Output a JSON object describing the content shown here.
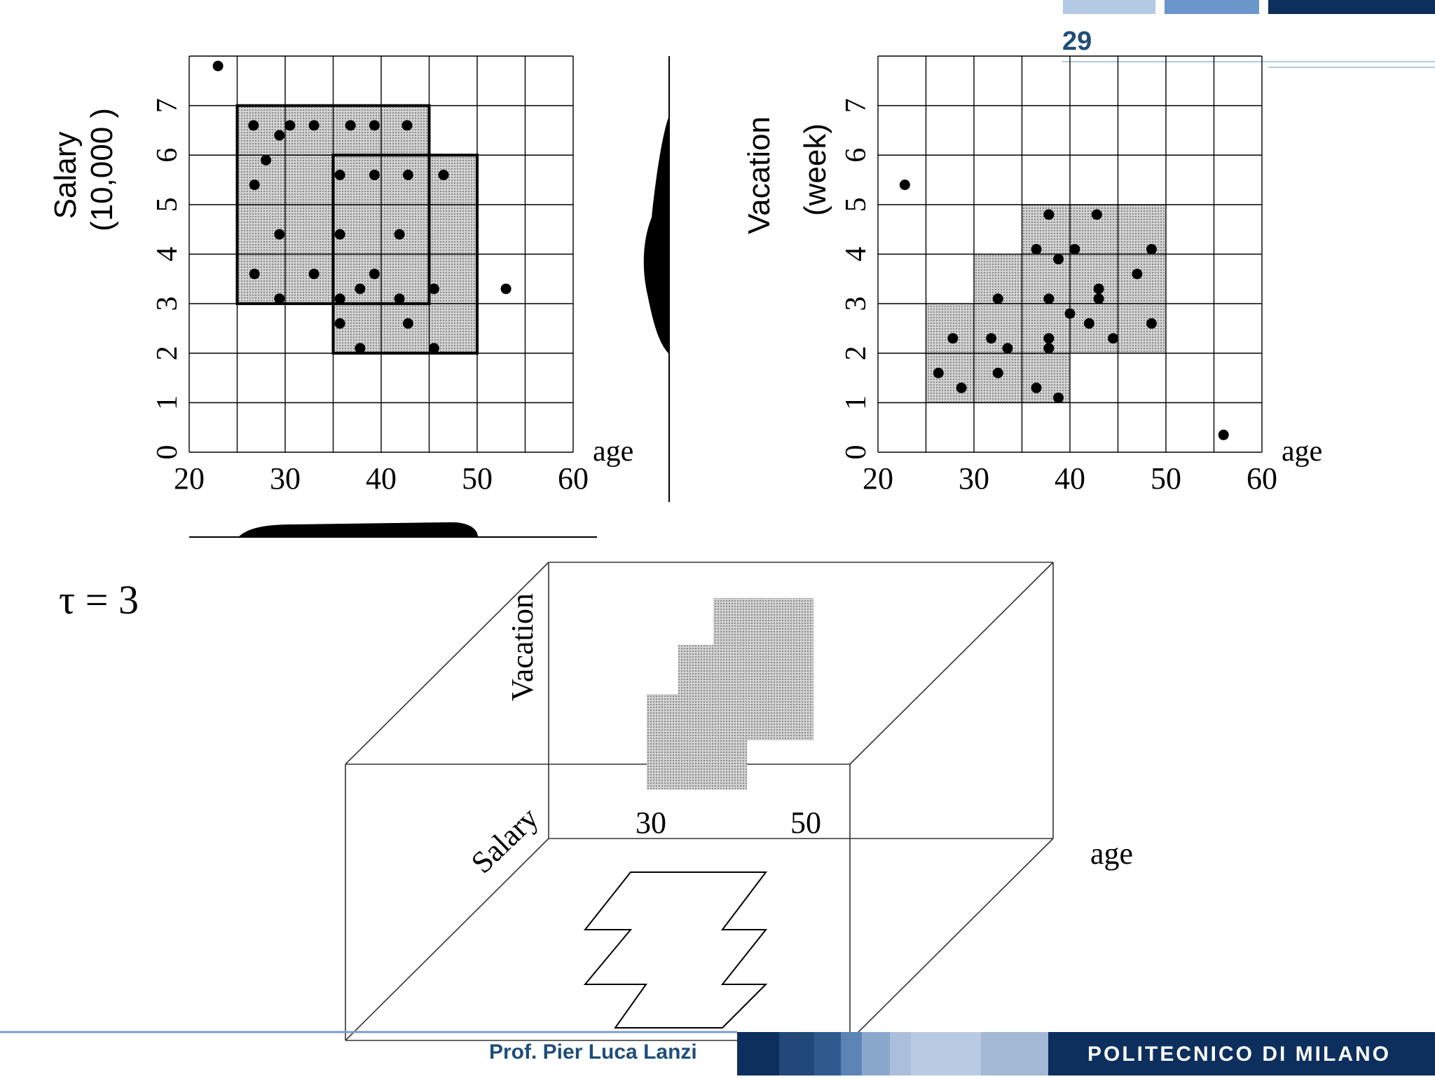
{
  "slide_number": "29",
  "footer": {
    "author": "Prof. Pier Luca Lanzi",
    "institution": "POLITECNICO DI MILANO"
  },
  "tau_label": "τ = 3",
  "colors": {
    "header_light": "#b3c9e4",
    "header_mid": "#6a96cb",
    "header_dark": "#0d2f5e",
    "footer_dark": "#0d2f5e",
    "shade": "#c4c4c4"
  },
  "chart_data": [
    {
      "type": "scatter",
      "ylabel": "Salary (10,000 )",
      "xlabel": "age",
      "x_ticks": [
        "20",
        "30",
        "40",
        "50",
        "60"
      ],
      "y_ticks": [
        "0",
        "1",
        "2",
        "3",
        "4",
        "5",
        "6",
        "7"
      ],
      "xlim": [
        20,
        60
      ],
      "ylim": [
        0,
        8
      ],
      "dense_regions": [
        {
          "x": [
            25,
            45
          ],
          "y": [
            3,
            7
          ]
        },
        {
          "x": [
            35,
            50
          ],
          "y": [
            2,
            6
          ]
        }
      ],
      "points": [
        [
          23,
          7.8
        ],
        [
          26.7,
          6.6
        ],
        [
          30.5,
          6.6
        ],
        [
          33,
          6.6
        ],
        [
          36.8,
          6.6
        ],
        [
          39.3,
          6.6
        ],
        [
          42.7,
          6.6
        ],
        [
          29.4,
          6.4
        ],
        [
          28,
          5.9
        ],
        [
          26.8,
          5.4
        ],
        [
          35.7,
          5.6
        ],
        [
          39.3,
          5.6
        ],
        [
          42.8,
          5.6
        ],
        [
          46.5,
          5.6
        ],
        [
          29.4,
          4.4
        ],
        [
          35.7,
          4.4
        ],
        [
          41.9,
          4.4
        ],
        [
          26.8,
          3.6
        ],
        [
          33,
          3.6
        ],
        [
          39.3,
          3.6
        ],
        [
          37.8,
          3.3
        ],
        [
          45.5,
          3.3
        ],
        [
          29.4,
          3.1
        ],
        [
          35.7,
          3.1
        ],
        [
          41.9,
          3.1
        ],
        [
          35.7,
          2.6
        ],
        [
          42.8,
          2.6
        ],
        [
          37.8,
          2.1
        ],
        [
          45.5,
          2.1
        ],
        [
          53,
          3.3
        ]
      ]
    },
    {
      "type": "scatter",
      "ylabel": "Vacation (week)",
      "xlabel": "age",
      "x_ticks": [
        "20",
        "30",
        "40",
        "50",
        "60"
      ],
      "y_ticks": [
        "0",
        "1",
        "2",
        "3",
        "4",
        "5",
        "6",
        "7"
      ],
      "xlim": [
        20,
        60
      ],
      "ylim": [
        0,
        8
      ],
      "dense_regions": [
        {
          "x": [
            25,
            35
          ],
          "y": [
            1,
            3
          ]
        },
        {
          "x": [
            30,
            40
          ],
          "y": [
            1,
            4
          ]
        },
        {
          "x": [
            35,
            50
          ],
          "y": [
            2,
            5
          ]
        }
      ],
      "points": [
        [
          22.8,
          5.4
        ],
        [
          37.8,
          4.8
        ],
        [
          42.8,
          4.8
        ],
        [
          36.5,
          4.1
        ],
        [
          40.5,
          4.1
        ],
        [
          48.5,
          4.1
        ],
        [
          38.8,
          3.9
        ],
        [
          47,
          3.6
        ],
        [
          43,
          3.3
        ],
        [
          32.5,
          3.1
        ],
        [
          37.8,
          3.1
        ],
        [
          43,
          3.1
        ],
        [
          40,
          2.8
        ],
        [
          42,
          2.6
        ],
        [
          48.5,
          2.6
        ],
        [
          27.8,
          2.3
        ],
        [
          31.8,
          2.3
        ],
        [
          37.8,
          2.3
        ],
        [
          44.5,
          2.3
        ],
        [
          33.5,
          2.1
        ],
        [
          37.8,
          2.1
        ],
        [
          26.3,
          1.6
        ],
        [
          32.5,
          1.6
        ],
        [
          28.7,
          1.3
        ],
        [
          36.5,
          1.3
        ],
        [
          38.8,
          1.1
        ],
        [
          56,
          0.35
        ]
      ]
    }
  ],
  "cube": {
    "vacation_label": "Vacation",
    "salary_label": "Salary",
    "age_label": "age",
    "tick_30": "30",
    "tick_50": "50"
  }
}
